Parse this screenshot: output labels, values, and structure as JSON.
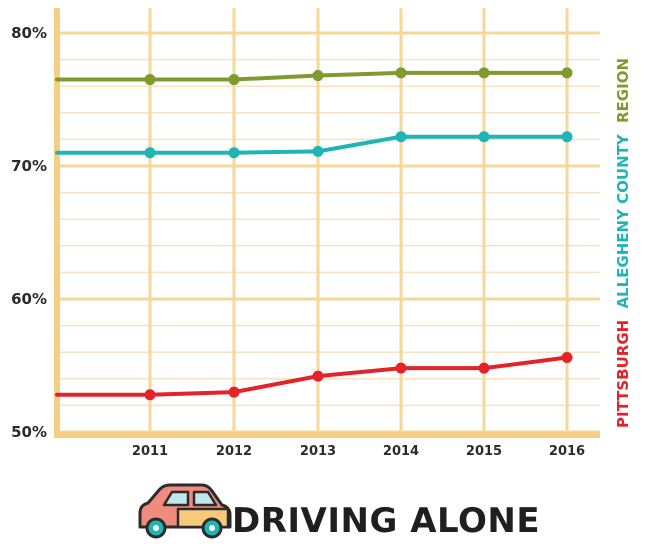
{
  "chart_data": {
    "type": "line",
    "title": "DRIVING ALONE",
    "x": [
      "2011",
      "2012",
      "2013",
      "2014",
      "2015",
      "2016"
    ],
    "ylim": [
      50,
      80
    ],
    "yticks": [
      {
        "value": 50,
        "label": "50%"
      },
      {
        "value": 60,
        "label": "60%"
      },
      {
        "value": 70,
        "label": "70%"
      },
      {
        "value": 80,
        "label": "80%"
      }
    ],
    "grid": true,
    "legend_position": "right, vertical",
    "series": [
      {
        "name": "REGION",
        "color": "#7f9a2e",
        "values": [
          76.5,
          76.5,
          76.8,
          77.0,
          77.0,
          77.0
        ]
      },
      {
        "name": "ALLEGHENY COUNTY",
        "color": "#1fb5b5",
        "values": [
          71.0,
          71.0,
          71.1,
          72.2,
          72.2,
          72.2
        ]
      },
      {
        "name": "PITTSBURGH",
        "color": "#e3222a",
        "values": [
          52.8,
          53.0,
          54.2,
          54.8,
          54.8,
          55.6
        ]
      }
    ]
  },
  "icons": {
    "car": "car-icon"
  }
}
